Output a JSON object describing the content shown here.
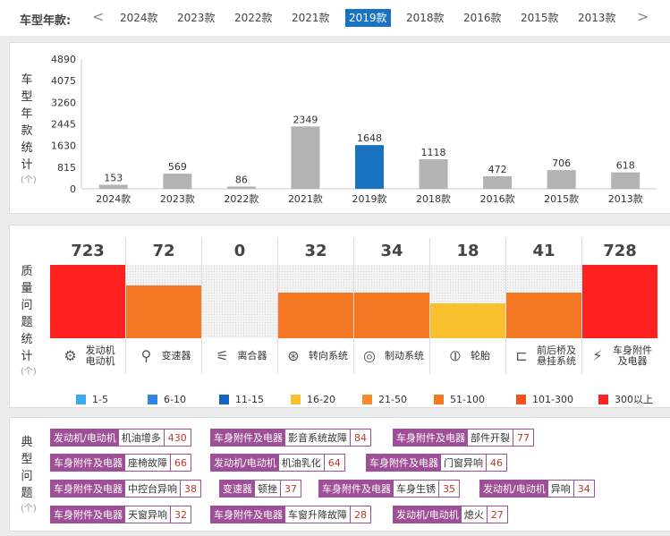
{
  "year_nav": {
    "label": "车型年款:",
    "prev": "<",
    "next": ">",
    "items": [
      "2024款",
      "2023款",
      "2022款",
      "2021款",
      "2019款",
      "2018款",
      "2016款",
      "2015款",
      "2013款"
    ],
    "selected": "2019款"
  },
  "chart_data": {
    "type": "bar",
    "title": "车型年款统计",
    "ylabel": "车型年款统计",
    "unit": "(个)",
    "categories": [
      "2024款",
      "2023款",
      "2022款",
      "2021款",
      "2019款",
      "2018款",
      "2016款",
      "2015款",
      "2013款"
    ],
    "values": [
      153,
      569,
      86,
      2349,
      1648,
      1118,
      472,
      706,
      618
    ],
    "yticks": [
      0,
      815,
      1630,
      2445,
      3260,
      4075,
      4890
    ],
    "ylim": [
      0,
      4890
    ],
    "highlight": "2019款",
    "bar_color": "#b3b3b3",
    "highlight_color": "#1a73c0",
    "grid": false
  },
  "quality": {
    "title": "质量问题统计",
    "unit": "(个)",
    "items": [
      {
        "name": "发动机\n电动机",
        "count": "723",
        "level": 1.0,
        "color": "#ff2020",
        "icon": "engine-icon",
        "glyph": "⚙"
      },
      {
        "name": "变速器",
        "count": "72",
        "level": 0.72,
        "color": "#f47723",
        "icon": "gearshift-icon",
        "glyph": "⚲"
      },
      {
        "name": "离合器",
        "count": "0",
        "level": 0.0,
        "color": "#f47723",
        "icon": "clutch-icon",
        "glyph": "⚟"
      },
      {
        "name": "转向系统",
        "count": "32",
        "level": 0.62,
        "color": "#f47723",
        "icon": "steering-wheel-icon",
        "glyph": "⊛"
      },
      {
        "name": "制动系统",
        "count": "34",
        "level": 0.62,
        "color": "#f47723",
        "icon": "brake-disc-icon",
        "glyph": "◎"
      },
      {
        "name": "轮胎",
        "count": "18",
        "level": 0.48,
        "color": "#fbc02d",
        "icon": "tire-icon",
        "glyph": "⦶"
      },
      {
        "name": "前后桥及\n悬挂系统",
        "count": "41",
        "level": 0.62,
        "color": "#f47723",
        "icon": "suspension-icon",
        "glyph": "⊏"
      },
      {
        "name": "车身附件\n及电器",
        "count": "728",
        "level": 1.0,
        "color": "#ff2020",
        "icon": "battery-icon",
        "glyph": "⚡"
      }
    ],
    "legend": [
      {
        "label": "1-5",
        "color": "#39a9f2"
      },
      {
        "label": "6-10",
        "color": "#2f86e6"
      },
      {
        "label": "11-15",
        "color": "#1565c0"
      },
      {
        "label": "16-20",
        "color": "#fbc02d"
      },
      {
        "label": "21-50",
        "color": "#fb8c2d"
      },
      {
        "label": "51-100",
        "color": "#f47723"
      },
      {
        "label": "101-300",
        "color": "#f4511e"
      },
      {
        "label": "300以上",
        "color": "#ff2020"
      }
    ]
  },
  "typical": {
    "title": "典型问题",
    "unit": "(个)",
    "rows": [
      [
        {
          "category": "发动机/电动机",
          "problem": "机油增多",
          "count": "430"
        },
        {
          "category": "车身附件及电器",
          "problem": "影音系统故障",
          "count": "84"
        },
        {
          "category": "车身附件及电器",
          "problem": "部件开裂",
          "count": "77"
        }
      ],
      [
        {
          "category": "车身附件及电器",
          "problem": "座椅故障",
          "count": "66"
        },
        {
          "category": "发动机/电动机",
          "problem": "机油乳化",
          "count": "64"
        },
        {
          "category": "车身附件及电器",
          "problem": "门窗异响",
          "count": "46"
        }
      ],
      [
        {
          "category": "车身附件及电器",
          "problem": "中控台异响",
          "count": "38"
        },
        {
          "category": "变速器",
          "problem": "顿挫",
          "count": "37"
        },
        {
          "category": "车身附件及电器",
          "problem": "车身生锈",
          "count": "35"
        },
        {
          "category": "发动机/电动机",
          "problem": "异响",
          "count": "34"
        }
      ],
      [
        {
          "category": "车身附件及电器",
          "problem": "天窗异响",
          "count": "32"
        },
        {
          "category": "车身附件及电器",
          "problem": "车窗升降故障",
          "count": "28"
        },
        {
          "category": "发动机/电动机",
          "problem": "熄火",
          "count": "27"
        }
      ]
    ]
  }
}
